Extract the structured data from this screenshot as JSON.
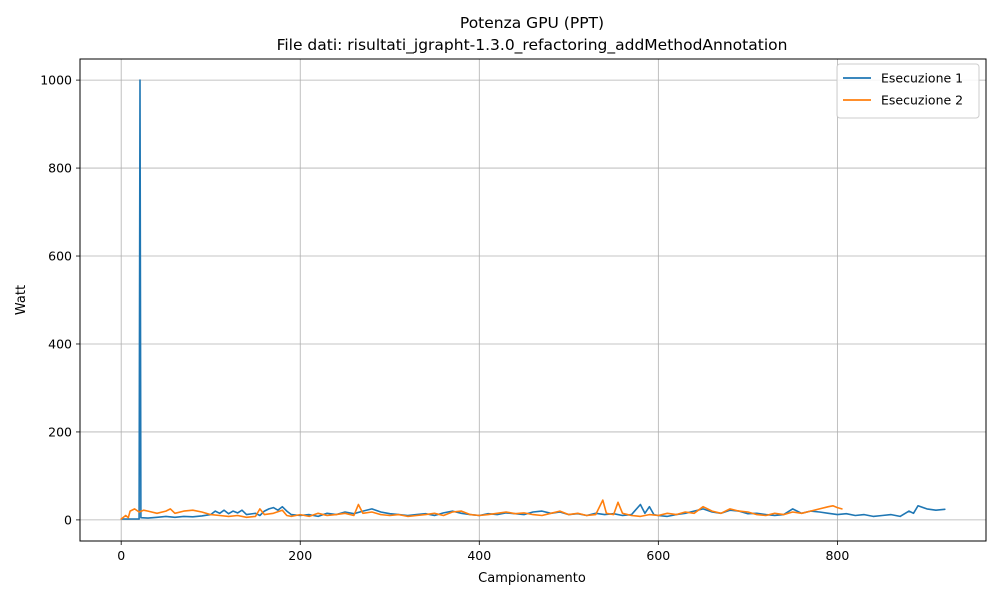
{
  "chart_data": {
    "type": "line",
    "title": "Potenza GPU (PPT)",
    "subtitle": "File dati: risultati_jgrapht-1.3.0_refactoring_addMethodAnnotation",
    "xlabel": "Campionamento",
    "ylabel": "Watt",
    "xlim": [
      -46,
      966
    ],
    "ylim": [
      -48,
      1048
    ],
    "xticks": [
      0,
      200,
      400,
      600,
      800
    ],
    "yticks": [
      0,
      200,
      400,
      600,
      800,
      1000
    ],
    "grid": true,
    "legend_position": "top-right",
    "series": [
      {
        "name": "Esecuzione 1",
        "color": "#1f77b4",
        "points": [
          [
            0,
            2
          ],
          [
            10,
            2
          ],
          [
            20,
            2
          ],
          [
            21,
            1000
          ],
          [
            22,
            5
          ],
          [
            30,
            4
          ],
          [
            40,
            6
          ],
          [
            50,
            8
          ],
          [
            60,
            6
          ],
          [
            70,
            8
          ],
          [
            80,
            7
          ],
          [
            90,
            9
          ],
          [
            100,
            12
          ],
          [
            105,
            20
          ],
          [
            110,
            15
          ],
          [
            115,
            22
          ],
          [
            120,
            14
          ],
          [
            125,
            20
          ],
          [
            130,
            16
          ],
          [
            135,
            22
          ],
          [
            140,
            12
          ],
          [
            150,
            15
          ],
          [
            155,
            10
          ],
          [
            160,
            20
          ],
          [
            165,
            25
          ],
          [
            170,
            28
          ],
          [
            175,
            22
          ],
          [
            180,
            30
          ],
          [
            185,
            20
          ],
          [
            190,
            12
          ],
          [
            200,
            10
          ],
          [
            210,
            12
          ],
          [
            220,
            8
          ],
          [
            230,
            15
          ],
          [
            240,
            12
          ],
          [
            250,
            18
          ],
          [
            260,
            14
          ],
          [
            270,
            20
          ],
          [
            280,
            25
          ],
          [
            290,
            18
          ],
          [
            300,
            14
          ],
          [
            310,
            12
          ],
          [
            320,
            10
          ],
          [
            330,
            12
          ],
          [
            340,
            14
          ],
          [
            350,
            10
          ],
          [
            360,
            16
          ],
          [
            370,
            20
          ],
          [
            380,
            15
          ],
          [
            390,
            12
          ],
          [
            400,
            10
          ],
          [
            410,
            14
          ],
          [
            420,
            12
          ],
          [
            430,
            16
          ],
          [
            440,
            14
          ],
          [
            450,
            12
          ],
          [
            460,
            18
          ],
          [
            470,
            20
          ],
          [
            480,
            15
          ],
          [
            490,
            18
          ],
          [
            500,
            12
          ],
          [
            510,
            14
          ],
          [
            520,
            10
          ],
          [
            530,
            15
          ],
          [
            540,
            12
          ],
          [
            550,
            14
          ],
          [
            560,
            10
          ],
          [
            570,
            12
          ],
          [
            580,
            35
          ],
          [
            585,
            15
          ],
          [
            590,
            30
          ],
          [
            595,
            12
          ],
          [
            600,
            10
          ],
          [
            610,
            8
          ],
          [
            620,
            12
          ],
          [
            630,
            15
          ],
          [
            640,
            20
          ],
          [
            650,
            25
          ],
          [
            660,
            18
          ],
          [
            670,
            15
          ],
          [
            680,
            22
          ],
          [
            690,
            20
          ],
          [
            700,
            14
          ],
          [
            710,
            15
          ],
          [
            720,
            12
          ],
          [
            730,
            10
          ],
          [
            740,
            12
          ],
          [
            750,
            25
          ],
          [
            760,
            15
          ],
          [
            770,
            20
          ],
          [
            780,
            18
          ],
          [
            790,
            15
          ],
          [
            800,
            12
          ],
          [
            810,
            14
          ],
          [
            820,
            10
          ],
          [
            830,
            12
          ],
          [
            840,
            8
          ],
          [
            850,
            10
          ],
          [
            860,
            12
          ],
          [
            870,
            8
          ],
          [
            880,
            20
          ],
          [
            885,
            15
          ],
          [
            890,
            32
          ],
          [
            900,
            25
          ],
          [
            910,
            22
          ],
          [
            920,
            24
          ]
        ]
      },
      {
        "name": "Esecuzione 2",
        "color": "#ff7f0e",
        "points": [
          [
            0,
            2
          ],
          [
            5,
            10
          ],
          [
            8,
            5
          ],
          [
            10,
            20
          ],
          [
            15,
            25
          ],
          [
            20,
            18
          ],
          [
            25,
            22
          ],
          [
            30,
            20
          ],
          [
            40,
            15
          ],
          [
            50,
            20
          ],
          [
            55,
            25
          ],
          [
            60,
            15
          ],
          [
            70,
            20
          ],
          [
            80,
            22
          ],
          [
            90,
            18
          ],
          [
            100,
            12
          ],
          [
            110,
            10
          ],
          [
            120,
            8
          ],
          [
            130,
            10
          ],
          [
            140,
            6
          ],
          [
            150,
            8
          ],
          [
            155,
            25
          ],
          [
            160,
            12
          ],
          [
            170,
            15
          ],
          [
            180,
            22
          ],
          [
            185,
            10
          ],
          [
            190,
            8
          ],
          [
            200,
            12
          ],
          [
            210,
            8
          ],
          [
            220,
            15
          ],
          [
            230,
            10
          ],
          [
            240,
            12
          ],
          [
            250,
            15
          ],
          [
            260,
            10
          ],
          [
            265,
            35
          ],
          [
            270,
            15
          ],
          [
            280,
            18
          ],
          [
            290,
            12
          ],
          [
            300,
            10
          ],
          [
            310,
            12
          ],
          [
            320,
            8
          ],
          [
            330,
            10
          ],
          [
            340,
            12
          ],
          [
            350,
            15
          ],
          [
            360,
            10
          ],
          [
            370,
            18
          ],
          [
            380,
            20
          ],
          [
            390,
            12
          ],
          [
            400,
            10
          ],
          [
            410,
            12
          ],
          [
            420,
            15
          ],
          [
            430,
            18
          ],
          [
            440,
            14
          ],
          [
            450,
            16
          ],
          [
            460,
            12
          ],
          [
            470,
            10
          ],
          [
            480,
            15
          ],
          [
            490,
            20
          ],
          [
            500,
            12
          ],
          [
            510,
            15
          ],
          [
            520,
            10
          ],
          [
            530,
            12
          ],
          [
            538,
            45
          ],
          [
            542,
            15
          ],
          [
            550,
            12
          ],
          [
            555,
            40
          ],
          [
            560,
            15
          ],
          [
            570,
            10
          ],
          [
            580,
            8
          ],
          [
            590,
            12
          ],
          [
            600,
            10
          ],
          [
            610,
            15
          ],
          [
            620,
            12
          ],
          [
            630,
            18
          ],
          [
            640,
            15
          ],
          [
            650,
            30
          ],
          [
            660,
            20
          ],
          [
            670,
            15
          ],
          [
            680,
            25
          ],
          [
            690,
            20
          ],
          [
            700,
            18
          ],
          [
            710,
            12
          ],
          [
            720,
            10
          ],
          [
            730,
            15
          ],
          [
            740,
            12
          ],
          [
            750,
            18
          ],
          [
            760,
            15
          ],
          [
            770,
            20
          ],
          [
            780,
            25
          ],
          [
            790,
            30
          ],
          [
            795,
            32
          ],
          [
            800,
            28
          ],
          [
            805,
            25
          ]
        ]
      }
    ]
  }
}
